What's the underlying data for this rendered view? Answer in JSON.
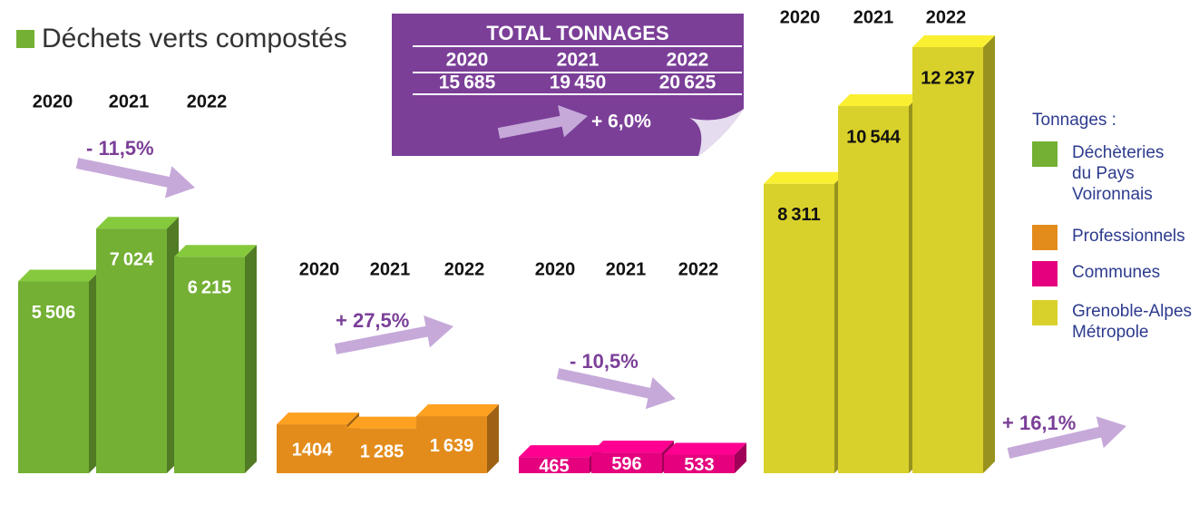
{
  "chart_data": {
    "type": "bar",
    "title": "Déchets verts compostés",
    "categories": [
      "2020",
      "2021",
      "2022"
    ],
    "series": [
      {
        "name": "Déchèteries du Pays Voironnais",
        "color": "#74b034",
        "label_color": "#ffffff",
        "values": [
          5506,
          7024,
          6215
        ],
        "value_labels": [
          "5 506",
          "7 024",
          "6 215"
        ],
        "change": "- 11,5%"
      },
      {
        "name": "Professionnels",
        "color": "#e38c1c",
        "label_color": "#ffffff",
        "values": [
          1404,
          1285,
          1639
        ],
        "value_labels": [
          "1404",
          "1 285",
          "1 639"
        ],
        "change": "+ 27,5%"
      },
      {
        "name": "Communes",
        "color": "#e5007e",
        "label_color": "#ffffff",
        "values": [
          465,
          596,
          533
        ],
        "value_labels": [
          "465",
          "596",
          "533"
        ],
        "change": "- 10,5%"
      },
      {
        "name": "Grenoble-Alpes Métropole",
        "color": "#d9d12b",
        "label_color": "#111111",
        "values": [
          8311,
          10544,
          12237
        ],
        "value_labels": [
          "8 311",
          "10 544",
          "12 237"
        ],
        "change": "+ 16,1%"
      }
    ],
    "total": {
      "title": "TOTAL TONNAGES",
      "values": [
        15685,
        19450,
        20625
      ],
      "value_labels": [
        "15 685",
        "19 450",
        "20 625"
      ],
      "change": "+ 6,0%"
    },
    "legend_title": "Tonnages :"
  }
}
